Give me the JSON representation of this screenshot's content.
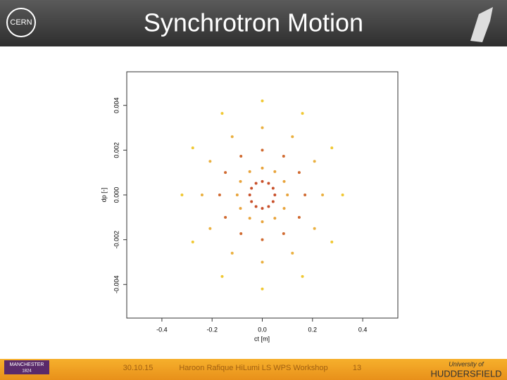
{
  "slide": {
    "title": "Synchrotron Motion",
    "date": "30.10.15",
    "footer": "Haroon Rafique HiLumi LS WPS Workshop",
    "page": "13",
    "logo_left": "CERN",
    "logo_manchester": "MANCHESTER",
    "logo_manchester_year": "1824",
    "logo_huddersfield_top": "University of",
    "logo_huddersfield": "HUDDERSFIELD"
  },
  "chart_data": {
    "type": "scatter",
    "x_label": "ct [m]",
    "y_label": "dp [-]",
    "xlim": [
      -0.54,
      0.54
    ],
    "ylim": [
      -0.0055,
      0.0055
    ],
    "xticks": [
      -0.4,
      -0.2,
      {
        "value": 0,
        "label": "0.0"
      },
      0.2,
      0.4
    ],
    "yticks": [
      {
        "value": -0.004,
        "label": "-0.004"
      },
      {
        "value": -0.002,
        "label": "-0.002"
      },
      {
        "value": 0,
        "label": "0.000"
      },
      {
        "value": 0.002,
        "label": "0.002"
      },
      {
        "value": 0.004,
        "label": "0.004"
      }
    ],
    "series": [
      {
        "color": "#c8502a",
        "x": [
          0.05,
          0.043,
          0.025,
          0,
          -0.025,
          -0.043,
          -0.05,
          -0.043,
          -0.025,
          0,
          0.025,
          0.043
        ],
        "values": [
          0,
          0.0003,
          0.00052,
          0.0006,
          0.00052,
          0.0003,
          0,
          -0.0003,
          -0.00052,
          -0.0006,
          -0.00052,
          -0.0003
        ]
      },
      {
        "color": "#e8a33a",
        "x": [
          0.1,
          0.087,
          0.05,
          0,
          -0.05,
          -0.087,
          -0.1,
          -0.087,
          -0.05,
          0,
          0.05,
          0.087
        ],
        "values": [
          0,
          0.0006,
          0.00104,
          0.0012,
          0.00104,
          0.0006,
          0,
          -0.0006,
          -0.00104,
          -0.0012,
          -0.00104,
          -0.0006
        ]
      },
      {
        "color": "#d06a30",
        "x": [
          0.17,
          0.147,
          0.085,
          0,
          -0.085,
          -0.147,
          -0.17,
          -0.147,
          -0.085,
          0,
          0.085,
          0.147
        ],
        "values": [
          0,
          0.001,
          0.00173,
          0.002,
          0.00173,
          0.001,
          0,
          -0.001,
          -0.00173,
          -0.002,
          -0.00173,
          -0.001
        ]
      },
      {
        "color": "#eab040",
        "x": [
          0.24,
          0.208,
          0.12,
          0,
          -0.12,
          -0.208,
          -0.24,
          -0.208,
          -0.12,
          0,
          0.12,
          0.208
        ],
        "values": [
          0,
          0.0015,
          0.0026,
          0.003,
          0.0026,
          0.0015,
          0,
          -0.0015,
          -0.0026,
          -0.003,
          -0.0026,
          -0.0015
        ]
      },
      {
        "color": "#f0c832",
        "x": [
          0.32,
          0.277,
          0.16,
          0,
          -0.16,
          -0.277,
          -0.32,
          -0.277,
          -0.16,
          0,
          0.16,
          0.277
        ],
        "values": [
          0,
          0.0021,
          0.00364,
          0.0042,
          0.00364,
          0.0021,
          0,
          -0.0021,
          -0.00364,
          -0.0042,
          -0.00364,
          -0.0021
        ]
      }
    ]
  }
}
